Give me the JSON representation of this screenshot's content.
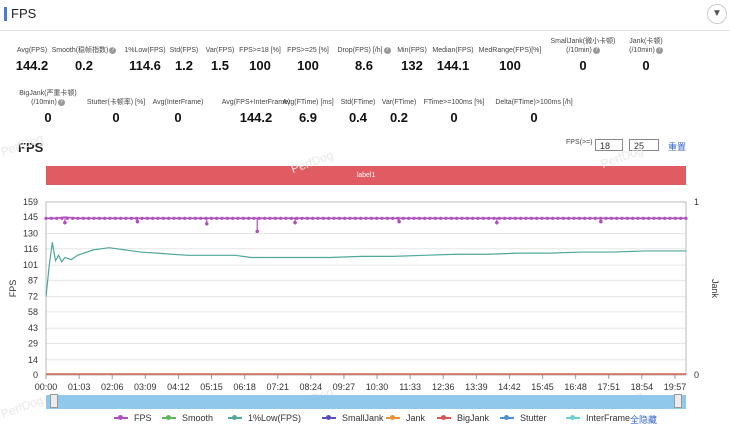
{
  "header": {
    "title": "FPS"
  },
  "metrics_row1": [
    {
      "label": "Avg(FPS)",
      "value": "144.2"
    },
    {
      "label": "Smooth(稳帧指数)",
      "value": "0.2",
      "help": true
    },
    {
      "label": "1%Low(FPS)",
      "value": "114.6"
    },
    {
      "label": "Std(FPS)",
      "value": "1.2"
    },
    {
      "label": "Var(FPS)",
      "value": "1.5"
    },
    {
      "label": "FPS>=18 [%]",
      "value": "100"
    },
    {
      "label": "FPS>=25 [%]",
      "value": "100"
    },
    {
      "label": "Drop(FPS) [/h]",
      "value": "8.6",
      "help": true
    },
    {
      "label": "Min(FPS)",
      "value": "132"
    },
    {
      "label": "Median(FPS)",
      "value": "144.1"
    },
    {
      "label": "MedRange(FPS)[%]",
      "value": "100"
    },
    {
      "label": "SmallJank(微小卡顿)",
      "label2": "(/10min)",
      "value": "0",
      "help": true
    },
    {
      "label": "Jank(卡顿)",
      "label2": "(/10min)",
      "value": "0",
      "help": true
    }
  ],
  "metrics_row2": [
    {
      "label": "BigJank(严重卡顿)",
      "label2": "(/10min)",
      "value": "0",
      "help": true
    },
    {
      "label": "Stutter(卡顿率) [%]",
      "value": "0"
    },
    {
      "label": "Avg(InterFrame)",
      "value": "0"
    },
    {
      "label": "Avg(FPS+InterFrame)",
      "value": "144.2"
    },
    {
      "label": "Avg(FTime) [ms]",
      "value": "6.9"
    },
    {
      "label": "Std(FTime)",
      "value": "0.4"
    },
    {
      "label": "Var(FTime)",
      "value": "0.2"
    },
    {
      "label": "FTime>=100ms [%]",
      "value": "0"
    },
    {
      "label": "Delta(FTime)>100ms [/h]",
      "value": "0"
    }
  ],
  "chart_section": {
    "title": "FPS",
    "fps_threshold_label": "FPS(>=)",
    "fps_threshold_1": "18",
    "fps_threshold_2": "25",
    "reset_label": "重置",
    "label_bar": "label1",
    "watermark": "PerfDog"
  },
  "chart_data": {
    "type": "line",
    "title": "",
    "ylabel": "FPS",
    "y2label": "Jank",
    "yticks": [
      0,
      14,
      29,
      43,
      58,
      72,
      87,
      101,
      116,
      130,
      145,
      159
    ],
    "ylim": [
      0,
      159
    ],
    "y2ticks": [
      "0",
      "1"
    ],
    "xticks": [
      "00:00",
      "01:03",
      "02:06",
      "03:09",
      "04:12",
      "05:15",
      "06:18",
      "07:21",
      "08:24",
      "09:27",
      "10:30",
      "11:33",
      "12:36",
      "13:39",
      "14:42",
      "15:45",
      "16:48",
      "17:51",
      "18:54",
      "19:57"
    ],
    "x_range_min": [
      0,
      20.3
    ],
    "series": [
      {
        "name": "FPS",
        "color": "#b04fbf",
        "x": [
          0,
          0.3,
          0.6,
          1,
          2,
          3,
          4,
          5,
          6,
          7,
          8,
          9,
          10,
          11,
          12,
          13,
          14,
          15,
          16,
          17,
          18,
          19,
          20.3
        ],
        "values": [
          144,
          144,
          145,
          144,
          144,
          144,
          144,
          144,
          144,
          144,
          144,
          144,
          144,
          144,
          144,
          144,
          144,
          144,
          144,
          144,
          144,
          144,
          144
        ]
      },
      {
        "name": "1%Low(FPS)",
        "color": "#4fa89a",
        "x": [
          0,
          0.1,
          0.2,
          0.3,
          0.4,
          0.5,
          0.6,
          0.8,
          1,
          1.5,
          2,
          2.5,
          3,
          3.5,
          4,
          4.5,
          5,
          6,
          6.5,
          7,
          8,
          9,
          10,
          11,
          12,
          13,
          14,
          15,
          16,
          17,
          18,
          19,
          20.3
        ],
        "values": [
          72,
          100,
          122,
          105,
          110,
          104,
          108,
          106,
          110,
          115,
          117,
          115,
          113,
          112,
          111,
          110,
          110,
          110,
          108,
          108,
          108,
          108,
          109,
          109,
          110,
          111,
          111,
          112,
          112,
          113,
          113,
          114,
          114
        ]
      },
      {
        "name": "Smooth",
        "color": "#5cb85c",
        "values": []
      },
      {
        "name": "SmallJank",
        "color": "#5b4fbf",
        "values": []
      },
      {
        "name": "Jank",
        "color": "#e8913a",
        "values": []
      },
      {
        "name": "BigJank",
        "color": "#d9534f",
        "values": []
      },
      {
        "name": "Stutter",
        "color": "#4a90d9",
        "values": []
      },
      {
        "name": "InterFrame",
        "color": "#6ccfd6",
        "values": []
      }
    ]
  },
  "legend": {
    "items": [
      {
        "name": "FPS",
        "color": "#b04fbf"
      },
      {
        "name": "Smooth",
        "color": "#5cb85c"
      },
      {
        "name": "1%Low(FPS)",
        "color": "#4fa89a"
      },
      {
        "name": "SmallJank",
        "color": "#5b4fbf"
      },
      {
        "name": "Jank",
        "color": "#e8913a"
      },
      {
        "name": "BigJank",
        "color": "#d9534f"
      },
      {
        "name": "Stutter",
        "color": "#4a90d9"
      },
      {
        "name": "InterFrame",
        "color": "#6ccfd6"
      }
    ],
    "hide_all_label": "全隐藏"
  },
  "colors": {
    "accent": "#4a7bd0",
    "label_bar": "#e05c62",
    "scrollbar": "#8fc8ea",
    "link": "#3366cc"
  }
}
